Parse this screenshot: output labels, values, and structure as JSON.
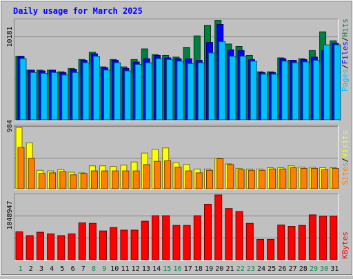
{
  "title": "Daily usage for March 2025",
  "colors": {
    "title": "#0000ff",
    "hits": "#008040",
    "files": "#0000ff",
    "pages": "#00c0ff",
    "visits": "#ffff00",
    "sites": "#ff8000",
    "kbytes": "#ff0000",
    "weekend_day": "#008040",
    "weekday": "#000000",
    "background": "#c0c0c0"
  },
  "chart_data": [
    {
      "type": "bar",
      "panel": "top",
      "categories": [
        "1",
        "2",
        "3",
        "4",
        "5",
        "6",
        "7",
        "8",
        "9",
        "10",
        "11",
        "12",
        "13",
        "14",
        "15",
        "16",
        "17",
        "18",
        "19",
        "20",
        "21",
        "22",
        "23",
        "24",
        "25",
        "26",
        "27",
        "28",
        "29",
        "30",
        "31"
      ],
      "weekend_days": [
        "1",
        "8",
        "9",
        "15",
        "16",
        "22",
        "23",
        "29",
        "30"
      ],
      "y_tick_label": "10181",
      "y_tick_value": 10181,
      "ylim": [
        0,
        12250
      ],
      "grid": true,
      "legend_placement": "right",
      "series": [
        {
          "name": "Hits",
          "key": "hits",
          "values": [
            7800,
            6100,
            6100,
            6100,
            5900,
            6300,
            7400,
            8300,
            6500,
            7400,
            6500,
            7400,
            8700,
            8000,
            7900,
            7700,
            8900,
            10300,
            11600,
            12200,
            9300,
            9000,
            7900,
            5900,
            5900,
            7600,
            7300,
            7500,
            8500,
            10800,
            9700
          ]
        },
        {
          "name": "Files",
          "key": "files",
          "values": [
            7800,
            6100,
            6000,
            6100,
            5800,
            6200,
            7300,
            8100,
            6400,
            7300,
            6300,
            7100,
            7500,
            7900,
            7600,
            7500,
            7500,
            7300,
            9500,
            11700,
            8600,
            8500,
            7400,
            5800,
            5800,
            7500,
            7300,
            7400,
            7700,
            8500,
            9400
          ]
        },
        {
          "name": "Pages",
          "key": "pages",
          "values": [
            7500,
            5800,
            5700,
            5800,
            5500,
            5800,
            7000,
            7800,
            6100,
            7000,
            6000,
            6800,
            7000,
            7500,
            7400,
            7200,
            6900,
            7000,
            8200,
            9600,
            7800,
            7800,
            7200,
            5600,
            5600,
            7200,
            7000,
            7100,
            7300,
            9200,
            9200
          ]
        }
      ]
    },
    {
      "type": "bar",
      "panel": "middle",
      "categories": [
        "1",
        "2",
        "3",
        "4",
        "5",
        "6",
        "7",
        "8",
        "9",
        "10",
        "11",
        "12",
        "13",
        "14",
        "15",
        "16",
        "17",
        "18",
        "19",
        "20",
        "21",
        "22",
        "23",
        "24",
        "25",
        "26",
        "27",
        "28",
        "29",
        "30",
        "31"
      ],
      "y_tick_label": "984",
      "y_tick_value": 984,
      "ylim": [
        0,
        984
      ],
      "grid": true,
      "legend_placement": "right",
      "series": [
        {
          "name": "Visits",
          "key": "visits",
          "values": [
            960,
            720,
            290,
            280,
            300,
            260,
            250,
            360,
            360,
            350,
            370,
            420,
            560,
            620,
            640,
            410,
            380,
            310,
            310,
            480,
            390,
            320,
            310,
            310,
            330,
            330,
            360,
            340,
            340,
            330,
            330
          ]
        },
        {
          "name": "Sites",
          "key": "sites",
          "values": [
            650,
            480,
            240,
            250,
            270,
            220,
            240,
            280,
            280,
            280,
            280,
            280,
            380,
            430,
            440,
            340,
            280,
            250,
            290,
            470,
            380,
            300,
            290,
            290,
            310,
            310,
            330,
            320,
            320,
            300,
            320
          ]
        }
      ]
    },
    {
      "type": "bar",
      "panel": "bottom",
      "categories": [
        "1",
        "2",
        "3",
        "4",
        "5",
        "6",
        "7",
        "8",
        "9",
        "10",
        "11",
        "12",
        "13",
        "14",
        "15",
        "16",
        "17",
        "18",
        "19",
        "20",
        "21",
        "22",
        "23",
        "24",
        "25",
        "26",
        "27",
        "28",
        "29",
        "30",
        "31"
      ],
      "y_tick_label": "1048947",
      "y_tick_value": 1048947,
      "ylim": [
        0,
        1530000
      ],
      "grid": true,
      "legend_placement": "right",
      "series": [
        {
          "name": "KBytes",
          "key": "kbytes",
          "values": [
            660000,
            570000,
            650000,
            610000,
            570000,
            610000,
            870000,
            860000,
            680000,
            760000,
            700000,
            700000,
            910000,
            1040000,
            1040000,
            810000,
            810000,
            1040000,
            1310000,
            1530000,
            1210000,
            1140000,
            860000,
            480000,
            480000,
            820000,
            790000,
            810000,
            1060000,
            1030000,
            1030000
          ]
        }
      ]
    }
  ]
}
